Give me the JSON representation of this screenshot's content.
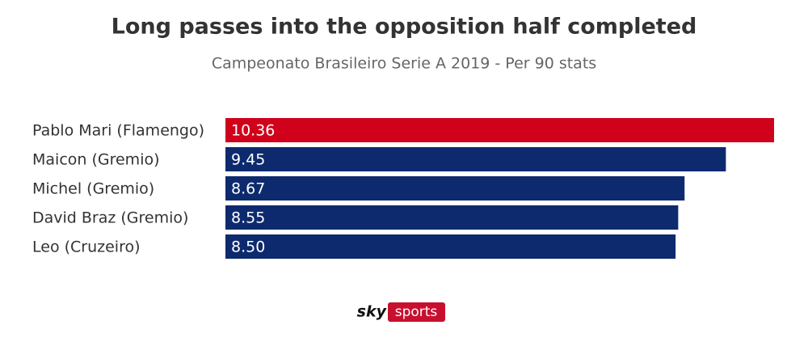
{
  "chart_data": {
    "type": "bar",
    "orientation": "horizontal",
    "title": "Long passes into the opposition half completed",
    "subtitle": "Campeonato Brasileiro Serie A 2019 - Per 90 stats",
    "categories": [
      "Pablo Mari (Flamengo)",
      "Maicon (Gremio)",
      "Michel (Gremio)",
      "David Braz (Gremio)",
      "Leo (Cruzeiro)"
    ],
    "values": [
      10.36,
      9.45,
      8.67,
      8.55,
      8.5
    ],
    "value_labels": [
      "10.36",
      "9.45",
      "8.67",
      "8.55",
      "8.50"
    ],
    "colors": [
      "#d0021b",
      "#0d2a6e",
      "#0d2a6e",
      "#0d2a6e",
      "#0d2a6e"
    ],
    "logo": {
      "brand": "sky",
      "product": "sports"
    }
  }
}
